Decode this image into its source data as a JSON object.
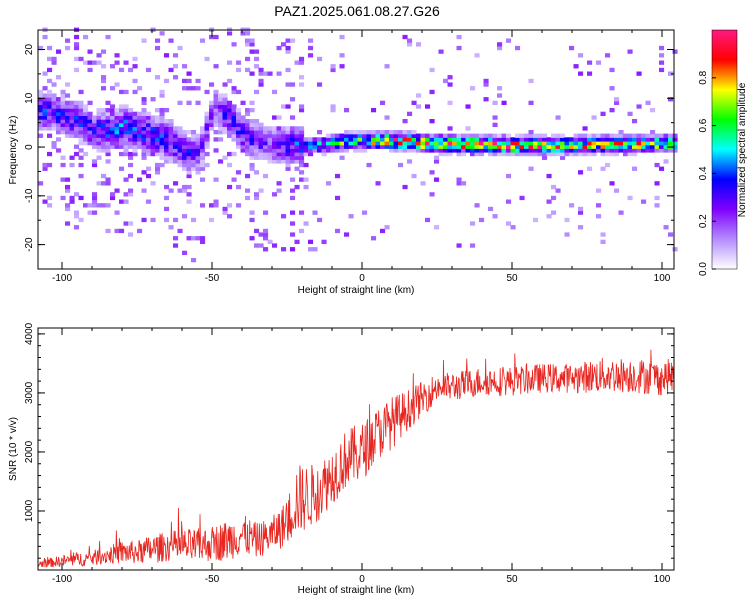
{
  "figure_title": "PAZ1.2025.061.08.27.G26",
  "chart_data": [
    {
      "type": "heatmap",
      "title": "PAZ1.2025.061.08.27.G26",
      "xlabel": "Height of straight line (km)",
      "ylabel": "Frequency (Hz)",
      "xlim": [
        -108,
        104
      ],
      "ylim": [
        -25,
        24
      ],
      "x_ticks": [
        -100,
        -50,
        0,
        50,
        100
      ],
      "x_tick_labels": [
        "-100",
        "-50",
        "0",
        "50",
        "100"
      ],
      "y_ticks": [
        -20,
        -10,
        0,
        10,
        20
      ],
      "y_tick_labels": [
        "-20",
        "-10",
        "0",
        "10",
        "20"
      ],
      "colorbar": {
        "label": "Normalized spectral amplitude",
        "range": [
          0,
          1
        ],
        "ticks": [
          0.0,
          0.2,
          0.4,
          0.6,
          0.8
        ],
        "tick_labels": [
          "0.0",
          "0.2",
          "0.4",
          "0.6",
          "0.8"
        ],
        "colormap": [
          "#ffffff",
          "#b38cff",
          "#8000ff",
          "#0000ff",
          "#00ffff",
          "#00ff00",
          "#ffff00",
          "#ff0000",
          "#ff1a80"
        ]
      },
      "ridge": {
        "x": [
          -105,
          -100,
          -95,
          -90,
          -85,
          -80,
          -75,
          -70,
          -65,
          -60,
          -55,
          -50,
          -45,
          -40,
          -35,
          -30,
          -25,
          -20,
          -15,
          -10,
          -5,
          0,
          5,
          10,
          15,
          20,
          30,
          40,
          50,
          60,
          70,
          80,
          90,
          100,
          104
        ],
        "freq": [
          7,
          6,
          5,
          3,
          3,
          4,
          3,
          2,
          1,
          -1,
          -2,
          8,
          6,
          2,
          1,
          0,
          0,
          0,
          0,
          0.5,
          1,
          1,
          1,
          1,
          0.8,
          0.5,
          0.3,
          0.2,
          0,
          0,
          0.1,
          0.3,
          0.3,
          0.4,
          0.5
        ],
        "amplitude": [
          0.3,
          0.3,
          0.3,
          0.3,
          0.35,
          0.35,
          0.35,
          0.35,
          0.3,
          0.3,
          0.25,
          0.2,
          0.3,
          0.3,
          0.25,
          0.2,
          0.3,
          0.35,
          0.45,
          0.5,
          0.55,
          0.6,
          0.7,
          0.75,
          0.8,
          0.75,
          0.75,
          0.8,
          0.8,
          0.75,
          0.7,
          0.7,
          0.65,
          0.65,
          0.6
        ]
      }
    },
    {
      "type": "line",
      "xlabel": "Height of straight line (km)",
      "ylabel": "SNR (10 * v/v)",
      "xlim": [
        -108,
        104
      ],
      "ylim": [
        0,
        4100
      ],
      "x_ticks": [
        -100,
        -50,
        0,
        50,
        100
      ],
      "x_tick_labels": [
        "-100",
        "-50",
        "0",
        "50",
        "100"
      ],
      "y_ticks": [
        1000,
        2000,
        3000,
        4000
      ],
      "y_tick_labels": [
        "1000",
        "2000",
        "3000",
        "4000"
      ],
      "color": "#e8251f",
      "series": [
        {
          "x": [
            -108,
            -100,
            -95,
            -90,
            -85,
            -80,
            -75,
            -70,
            -65,
            -60,
            -55,
            -50,
            -45,
            -40,
            -35,
            -30,
            -25,
            -22,
            -20,
            -15,
            -10,
            -5,
            0,
            5,
            10,
            15,
            20,
            25,
            30,
            40,
            50,
            60,
            70,
            80,
            90,
            100,
            104
          ],
          "y": [
            100,
            150,
            180,
            200,
            250,
            300,
            300,
            350,
            400,
            400,
            400,
            450,
            500,
            600,
            500,
            600,
            800,
            1200,
            1200,
            1300,
            1600,
            1900,
            2000,
            2300,
            2500,
            2700,
            2900,
            3100,
            3100,
            3200,
            3200,
            3250,
            3250,
            3300,
            3300,
            3250,
            3300
          ],
          "spread": [
            60,
            100,
            120,
            130,
            150,
            200,
            200,
            250,
            250,
            300,
            300,
            300,
            350,
            350,
            300,
            300,
            400,
            600,
            600,
            500,
            500,
            500,
            500,
            450,
            450,
            350,
            300,
            250,
            250,
            250,
            250,
            250,
            250,
            300,
            300,
            300,
            300
          ]
        }
      ]
    }
  ]
}
